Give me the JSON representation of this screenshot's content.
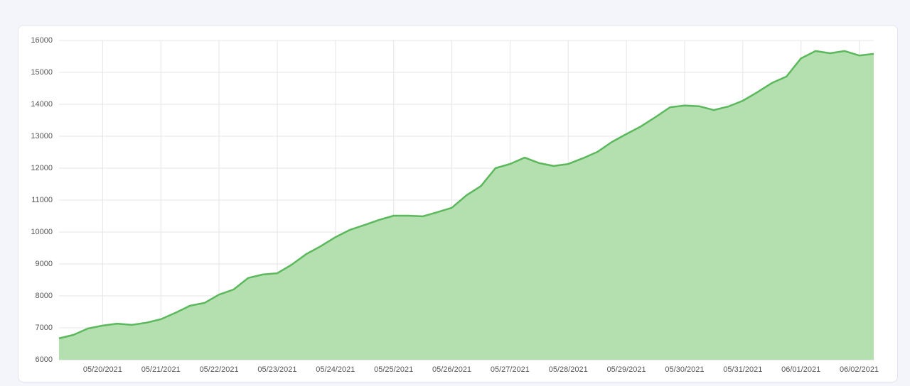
{
  "chart_data": {
    "type": "area",
    "categories": [
      null,
      null,
      null,
      "05/20/2021",
      null,
      null,
      null,
      "05/21/2021",
      null,
      null,
      null,
      "05/22/2021",
      null,
      null,
      null,
      "05/23/2021",
      null,
      null,
      null,
      "05/24/2021",
      null,
      null,
      null,
      "05/25/2021",
      null,
      null,
      null,
      "05/26/2021",
      null,
      null,
      null,
      "05/27/2021",
      null,
      null,
      null,
      "05/28/2021",
      null,
      null,
      null,
      "05/29/2021",
      null,
      null,
      null,
      "05/30/2021",
      null,
      null,
      null,
      "05/31/2021",
      null,
      null,
      null,
      "06/01/2021",
      null,
      null,
      null,
      "06/02/2021",
      null
    ],
    "values": [
      6670,
      6780,
      6980,
      7070,
      7130,
      7090,
      7160,
      7270,
      7470,
      7690,
      7780,
      8040,
      8200,
      8560,
      8670,
      8710,
      8980,
      9310,
      9560,
      9840,
      10070,
      10220,
      10380,
      10510,
      10510,
      10490,
      10620,
      10760,
      11150,
      11440,
      12000,
      12130,
      12330,
      12160,
      12070,
      12130,
      12310,
      12510,
      12820,
      13070,
      13310,
      13600,
      13910,
      13960,
      13940,
      13820,
      13930,
      14110,
      14380,
      14670,
      14870,
      15440,
      15670,
      15600,
      15670,
      15530,
      15580
    ],
    "color": "#5cb85c",
    "fill_color": "#b3e0ae",
    "ylim": [
      6000,
      16000
    ],
    "yticks": [
      6000,
      7000,
      8000,
      9000,
      10000,
      11000,
      12000,
      13000,
      14000,
      15000,
      16000
    ],
    "grid": true
  }
}
